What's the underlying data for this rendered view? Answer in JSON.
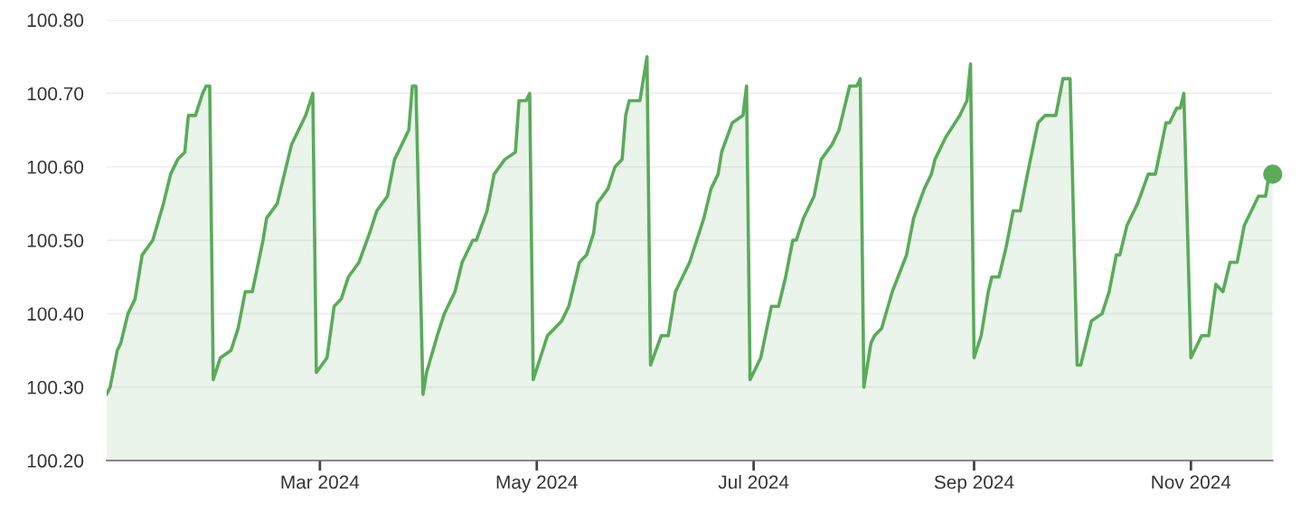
{
  "chart_data": {
    "type": "area",
    "x": [
      "2024-01-01",
      "2024-01-02",
      "2024-01-04",
      "2024-01-05",
      "2024-01-07",
      "2024-01-09",
      "2024-01-11",
      "2024-01-14",
      "2024-01-17",
      "2024-01-19",
      "2024-01-21",
      "2024-01-23",
      "2024-01-24",
      "2024-01-26",
      "2024-01-28",
      "2024-01-29",
      "2024-01-30",
      "2024-01-31",
      "2024-02-02",
      "2024-02-05",
      "2024-02-07",
      "2024-02-09",
      "2024-02-11",
      "2024-02-14",
      "2024-02-15",
      "2024-02-18",
      "2024-02-20",
      "2024-02-22",
      "2024-02-24",
      "2024-02-26",
      "2024-02-28",
      "2024-02-29",
      "2024-03-03",
      "2024-03-05",
      "2024-03-07",
      "2024-03-09",
      "2024-03-12",
      "2024-03-15",
      "2024-03-17",
      "2024-03-20",
      "2024-03-22",
      "2024-03-25",
      "2024-03-26",
      "2024-03-27",
      "2024-03-28",
      "2024-03-30",
      "2024-03-31",
      "2024-04-03",
      "2024-04-05",
      "2024-04-08",
      "2024-04-10",
      "2024-04-13",
      "2024-04-14",
      "2024-04-17",
      "2024-04-19",
      "2024-04-22",
      "2024-04-25",
      "2024-04-26",
      "2024-04-28",
      "2024-04-29",
      "2024-04-30",
      "2024-05-04",
      "2024-05-06",
      "2024-05-08",
      "2024-05-10",
      "2024-05-13",
      "2024-05-15",
      "2024-05-17",
      "2024-05-18",
      "2024-05-21",
      "2024-05-23",
      "2024-05-25",
      "2024-05-26",
      "2024-05-27",
      "2024-05-30",
      "2024-05-31",
      "2024-06-01",
      "2024-06-02",
      "2024-06-05",
      "2024-06-07",
      "2024-06-09",
      "2024-06-13",
      "2024-06-15",
      "2024-06-17",
      "2024-06-19",
      "2024-06-21",
      "2024-06-22",
      "2024-06-25",
      "2024-06-28",
      "2024-06-29",
      "2024-06-30",
      "2024-07-03",
      "2024-07-06",
      "2024-07-08",
      "2024-07-10",
      "2024-07-12",
      "2024-07-13",
      "2024-07-15",
      "2024-07-18",
      "2024-07-20",
      "2024-07-23",
      "2024-07-25",
      "2024-07-28",
      "2024-07-30",
      "2024-07-31",
      "2024-08-01",
      "2024-08-03",
      "2024-08-04",
      "2024-08-06",
      "2024-08-09",
      "2024-08-13",
      "2024-08-15",
      "2024-08-18",
      "2024-08-20",
      "2024-08-21",
      "2024-08-24",
      "2024-08-28",
      "2024-08-30",
      "2024-08-31",
      "2024-09-01",
      "2024-09-03",
      "2024-09-05",
      "2024-09-06",
      "2024-09-08",
      "2024-09-10",
      "2024-09-12",
      "2024-09-14",
      "2024-09-16",
      "2024-09-19",
      "2024-09-21",
      "2024-09-24",
      "2024-09-26",
      "2024-09-28",
      "2024-09-30",
      "2024-10-01",
      "2024-10-04",
      "2024-10-07",
      "2024-10-09",
      "2024-10-11",
      "2024-10-12",
      "2024-10-14",
      "2024-10-17",
      "2024-10-20",
      "2024-10-22",
      "2024-10-25",
      "2024-10-26",
      "2024-10-28",
      "2024-10-29",
      "2024-10-30",
      "2024-11-01",
      "2024-11-04",
      "2024-11-06",
      "2024-11-08",
      "2024-11-10",
      "2024-11-12",
      "2024-11-14",
      "2024-11-16",
      "2024-11-18",
      "2024-11-20",
      "2024-11-22",
      "2024-11-23",
      "2024-11-24"
    ],
    "series": [
      {
        "color": "#5aab5a",
        "values": [
          100.29,
          100.3,
          100.35,
          100.36,
          100.4,
          100.42,
          100.48,
          100.5,
          100.55,
          100.59,
          100.61,
          100.62,
          100.67,
          100.67,
          100.7,
          100.71,
          100.71,
          100.31,
          100.34,
          100.35,
          100.38,
          100.43,
          100.43,
          100.5,
          100.53,
          100.55,
          100.59,
          100.63,
          100.65,
          100.67,
          100.7,
          100.32,
          100.34,
          100.41,
          100.42,
          100.45,
          100.47,
          100.51,
          100.54,
          100.56,
          100.61,
          100.64,
          100.65,
          100.71,
          100.71,
          100.29,
          100.32,
          100.37,
          100.4,
          100.43,
          100.47,
          100.5,
          100.5,
          100.54,
          100.59,
          100.61,
          100.62,
          100.69,
          100.69,
          100.7,
          100.31,
          100.37,
          100.38,
          100.39,
          100.41,
          100.47,
          100.48,
          100.51,
          100.55,
          100.57,
          100.6,
          100.61,
          100.67,
          100.69,
          100.69,
          100.72,
          100.75,
          100.33,
          100.37,
          100.37,
          100.43,
          100.47,
          100.5,
          100.53,
          100.57,
          100.59,
          100.62,
          100.66,
          100.67,
          100.71,
          100.31,
          100.34,
          100.41,
          100.41,
          100.45,
          100.5,
          100.5,
          100.53,
          100.56,
          100.61,
          100.63,
          100.65,
          100.71,
          100.71,
          100.72,
          100.3,
          100.36,
          100.37,
          100.38,
          100.43,
          100.48,
          100.53,
          100.57,
          100.59,
          100.61,
          100.64,
          100.67,
          100.69,
          100.74,
          100.34,
          100.37,
          100.43,
          100.45,
          100.45,
          100.49,
          100.54,
          100.54,
          100.59,
          100.66,
          100.67,
          100.67,
          100.72,
          100.72,
          100.33,
          100.33,
          100.39,
          100.4,
          100.43,
          100.48,
          100.48,
          100.52,
          100.55,
          100.59,
          100.59,
          100.66,
          100.66,
          100.68,
          100.68,
          100.7,
          100.34,
          100.37,
          100.37,
          100.44,
          100.43,
          100.47,
          100.47,
          100.52,
          100.54,
          100.56,
          100.56,
          100.59,
          100.59
        ]
      },
      {
        "type": "scatter",
        "color": "#5aab5a",
        "x": [
          "2024-11-24"
        ],
        "values": [
          100.59
        ]
      }
    ],
    "xlim": [
      "2024-01-01",
      "2024-11-24"
    ],
    "xticks": [
      {
        "value": "2024-03-01",
        "label": "Mar 2024"
      },
      {
        "value": "2024-05-01",
        "label": "May 2024"
      },
      {
        "value": "2024-07-01",
        "label": "Jul 2024"
      },
      {
        "value": "2024-09-01",
        "label": "Sep 2024"
      },
      {
        "value": "2024-11-01",
        "label": "Nov 2024"
      }
    ],
    "ylim": [
      100.2,
      100.8
    ],
    "yticks": [
      {
        "value": 100.2,
        "label": "100.20"
      },
      {
        "value": 100.3,
        "label": "100.30"
      },
      {
        "value": 100.4,
        "label": "100.40"
      },
      {
        "value": 100.5,
        "label": "100.50"
      },
      {
        "value": 100.6,
        "label": "100.60"
      },
      {
        "value": 100.7,
        "label": "100.70"
      },
      {
        "value": 100.8,
        "label": "100.80"
      }
    ],
    "grid": "y"
  }
}
